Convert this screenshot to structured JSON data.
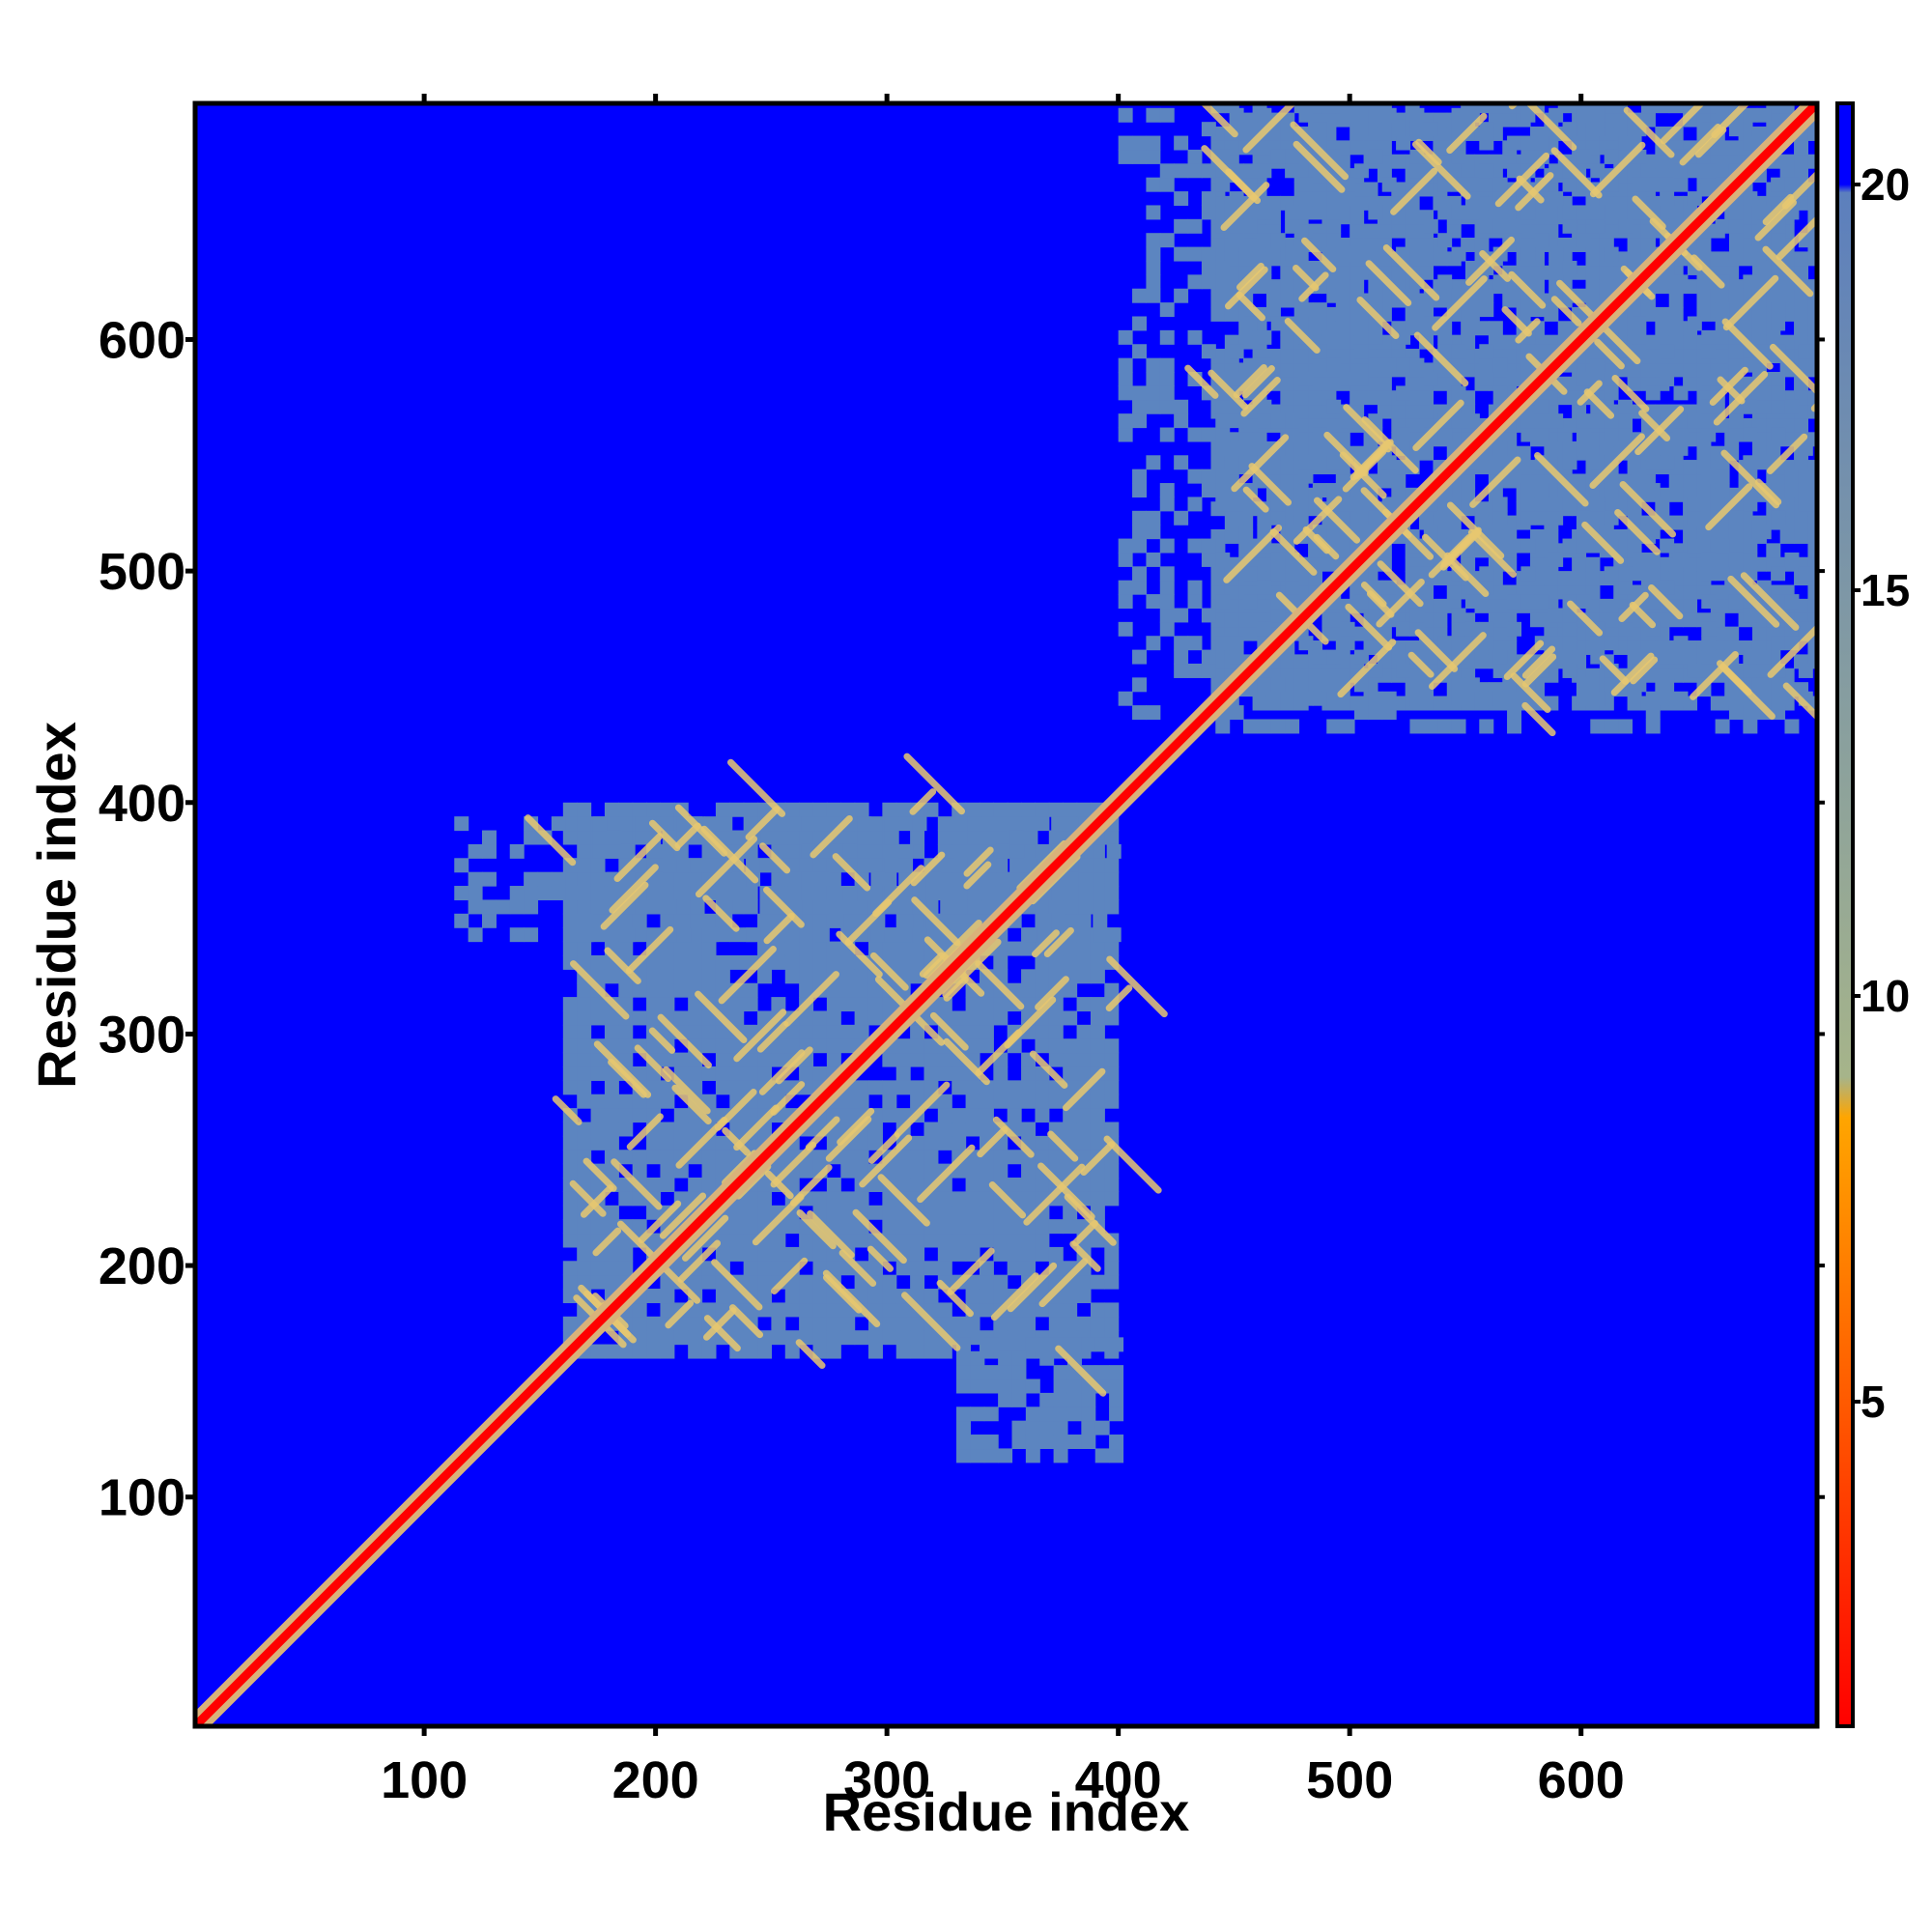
{
  "chart_data": {
    "type": "heatmap",
    "title": "",
    "xlabel": "Residue index",
    "ylabel": "Residue index",
    "xlim": [
      1,
      702
    ],
    "ylim": [
      1,
      702
    ],
    "x_ticks": [
      100,
      200,
      300,
      400,
      500,
      600
    ],
    "y_ticks": [
      100,
      200,
      300,
      400,
      500,
      600
    ],
    "colorbar": {
      "ticks": [
        5,
        10,
        15,
        20
      ],
      "range": [
        1,
        21
      ],
      "stops": [
        {
          "value": 1,
          "color": "#ff0000"
        },
        {
          "value": 5,
          "color": "#ff5a00"
        },
        {
          "value": 8.5,
          "color": "#ffa500"
        },
        {
          "value": 9,
          "color": "#a6b48a"
        },
        {
          "value": 19.9,
          "color": "#5c7fbd"
        },
        {
          "value": 20,
          "color": "#0000ff"
        }
      ]
    },
    "background_color": "#0000ff",
    "domain_color": "#5c85c0",
    "contact_color": "#e8c870",
    "diagonal_color": "#ff0000",
    "domains": [
      {
        "range": [
          160,
          400
        ],
        "density": 0.85
      },
      {
        "range": [
          440,
          702
        ],
        "density": 0.85
      }
    ],
    "inter_domain_blocks": [
      {
        "x": [
          113,
          400
        ],
        "y": [
          340,
          392
        ],
        "density": 0.45
      },
      {
        "x": [
          400,
          700
        ],
        "y": [
          430,
          700
        ],
        "density": 0.35
      },
      {
        "x": [
          330,
          400
        ],
        "y": [
          115,
          165
        ],
        "density": 0.6
      }
    ],
    "grid": false
  }
}
